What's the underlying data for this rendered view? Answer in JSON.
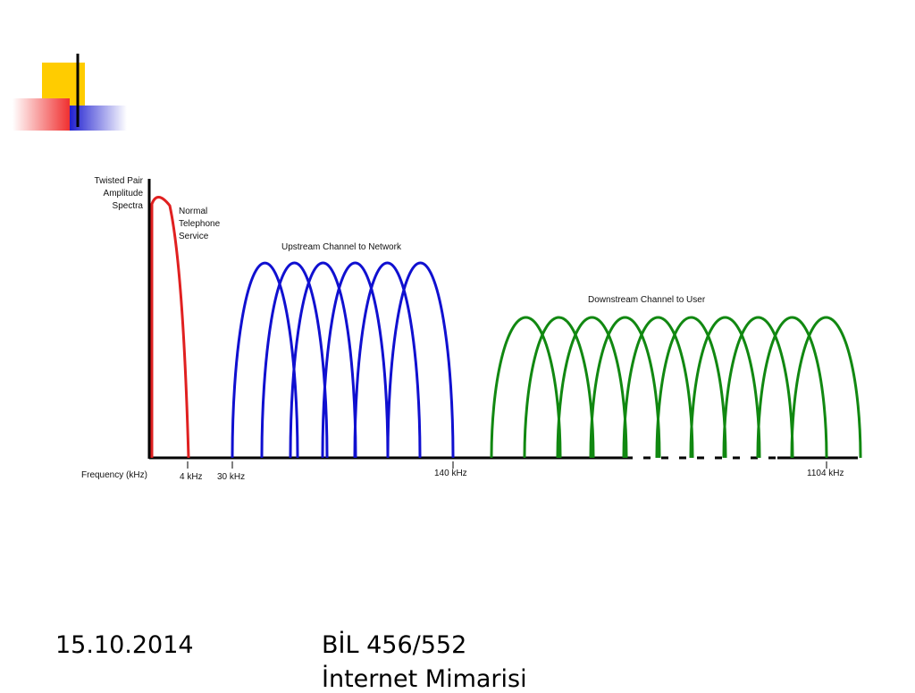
{
  "diagram": {
    "y_axis_label": [
      "Twisted Pair",
      "Amplitude",
      "Spectra"
    ],
    "voice_label": [
      "Normal",
      "Telephone",
      "Service"
    ],
    "upstream_label": "Upstream Channel to Network",
    "downstream_label": "Downstream Channel to User",
    "x_axis_label": "Frequency (kHz)",
    "tick_labels": [
      "4 kHz",
      "30 kHz",
      "140 kHz",
      "1104 kHz"
    ]
  },
  "footer": {
    "date": "15.10.2014",
    "course": "BİL 456/552",
    "subject": "İnternet Mimarisi"
  }
}
